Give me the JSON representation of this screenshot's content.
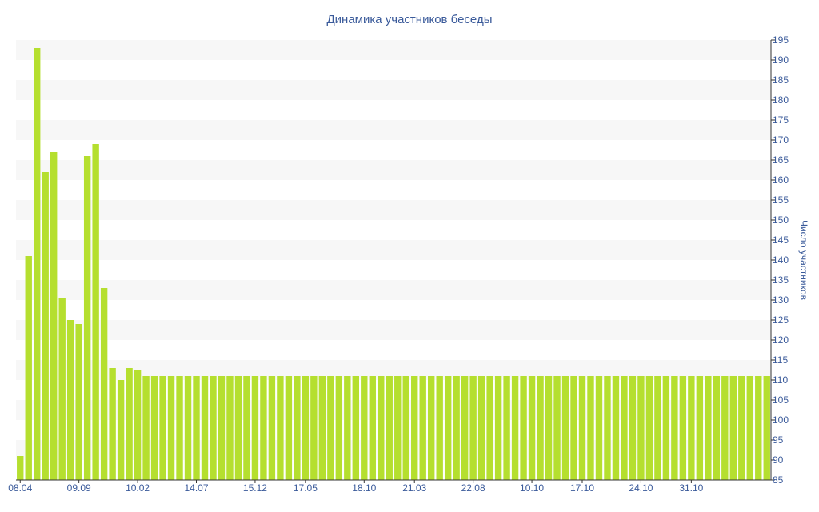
{
  "chart_data": {
    "type": "bar",
    "title": "Динамика участников беседы",
    "ylabel": "Число участников",
    "xlabel": "",
    "ylim": [
      85,
      195
    ],
    "y_ticks": [
      85,
      90,
      95,
      100,
      105,
      110,
      115,
      120,
      125,
      130,
      135,
      140,
      145,
      150,
      155,
      160,
      165,
      170,
      175,
      180,
      185,
      190,
      195
    ],
    "x_tick_labels": [
      {
        "index": 0,
        "label": "08.04"
      },
      {
        "index": 7,
        "label": "09.09"
      },
      {
        "index": 14,
        "label": "10.02"
      },
      {
        "index": 21,
        "label": "14.07"
      },
      {
        "index": 28,
        "label": "15.12"
      },
      {
        "index": 34,
        "label": "17.05"
      },
      {
        "index": 41,
        "label": "18.10"
      },
      {
        "index": 47,
        "label": "21.03"
      },
      {
        "index": 54,
        "label": "22.08"
      },
      {
        "index": 61,
        "label": "10.10"
      },
      {
        "index": 67,
        "label": "17.10"
      },
      {
        "index": 74,
        "label": "24.10"
      },
      {
        "index": 80,
        "label": "31.10"
      }
    ],
    "values": [
      91,
      141,
      193,
      162,
      167,
      130.5,
      125,
      124,
      166,
      169,
      133,
      113,
      110,
      113,
      112.5,
      111,
      111,
      111,
      111,
      111,
      111,
      111,
      111,
      111,
      111,
      111,
      111,
      111,
      111,
      111,
      111,
      111,
      111,
      111,
      111,
      111,
      111,
      111,
      111,
      111,
      111,
      111,
      111,
      111,
      111,
      111,
      111,
      111,
      111,
      111,
      111,
      111,
      111,
      111,
      111,
      111,
      111,
      111,
      111,
      111,
      111,
      111,
      111,
      111,
      111,
      111,
      111,
      111,
      111,
      111,
      111,
      111,
      111,
      111,
      111,
      111,
      111,
      111,
      111,
      111,
      111,
      111,
      111,
      111,
      111,
      111,
      111,
      111,
      111,
      111
    ],
    "grid": "alternating horizontal bands",
    "y_axis_side": "right",
    "colors": {
      "bar": "#b5df2f",
      "band": "#f7f7f7",
      "text": "#3a5a9a",
      "axis": "#333333"
    }
  }
}
